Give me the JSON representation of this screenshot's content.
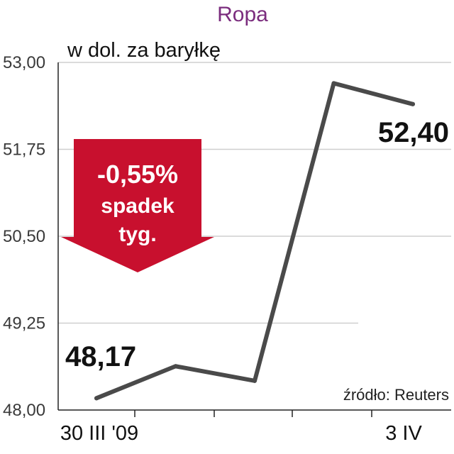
{
  "chart_data": {
    "type": "line",
    "title": "Ropa",
    "ylabel": "w dol. za baryłkę",
    "ylim": [
      48.0,
      53.0
    ],
    "yticks": [
      "53,00",
      "51,75",
      "50,50",
      "49,25",
      "48,00"
    ],
    "ytick_values": [
      53.0,
      51.75,
      50.5,
      49.25,
      48.0
    ],
    "x_labels": [
      "30 III '09",
      "",
      "",
      "",
      "3 IV"
    ],
    "series": [
      {
        "values": [
          48.17,
          48.63,
          48.42,
          52.7,
          52.4
        ]
      }
    ],
    "data_labels": {
      "first": "48,17",
      "last": "52,40"
    },
    "colors": {
      "line": "#4a4a4a",
      "badge": "#c8102e",
      "title": "#7b2d7e",
      "grid": "#cfcfcf"
    },
    "grid": true
  },
  "badge": {
    "change": "-0,55%",
    "line2": "spadek",
    "line3": "tyg."
  },
  "source": "źródło: Reuters"
}
